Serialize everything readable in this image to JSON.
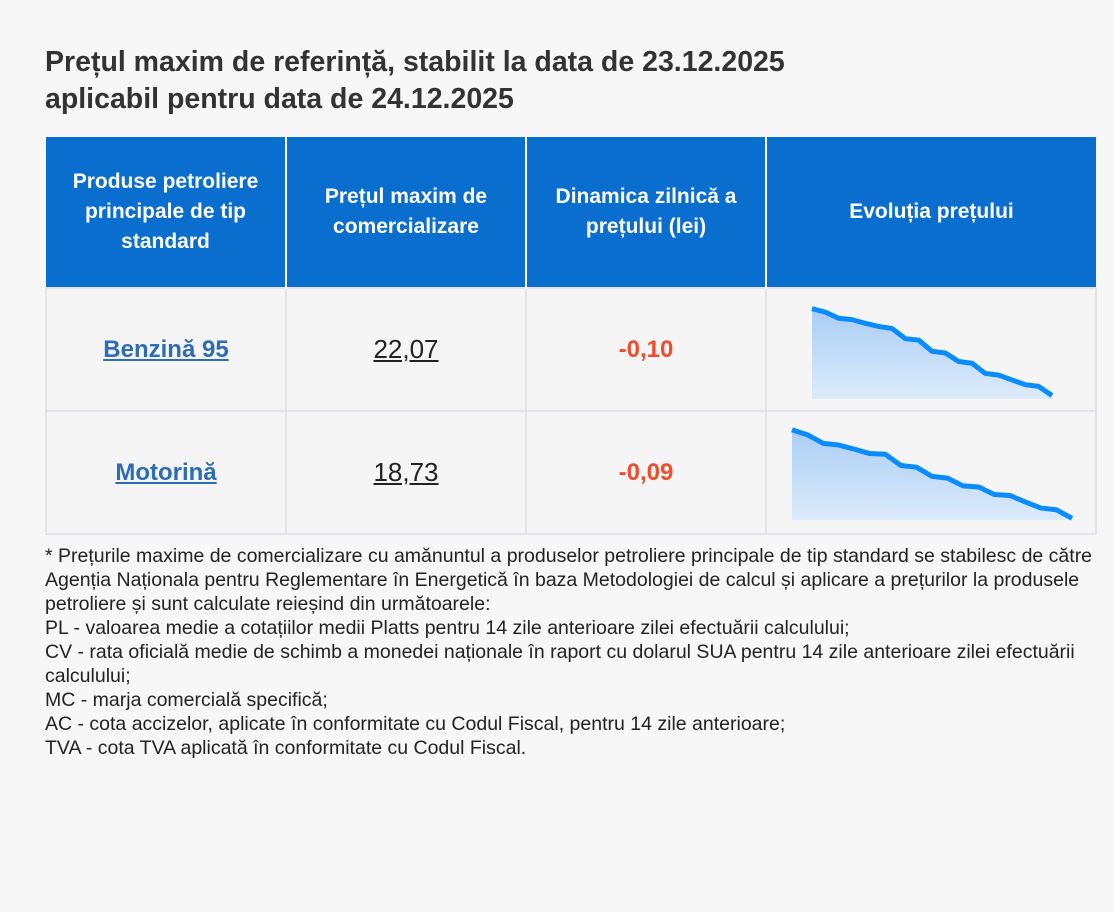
{
  "title_line1": "Prețul maxim de referință, stabilit la data de 23.12.2025",
  "title_line2": "aplicabil pentru data de 24.12.2025",
  "table": {
    "headers": [
      "Produse petroliere principale de tip standard",
      "Prețul maxim de comercializare",
      "Dinamica zilnică a prețului (lei)",
      "Evoluția prețului"
    ],
    "rows": [
      {
        "product": "Benzină 95",
        "price": "22,07",
        "change": "-0,10",
        "trend": [
          265,
          255,
          237,
          233,
          222,
          213,
          207,
          177,
          173,
          140,
          135,
          110,
          105,
          75,
          70,
          56,
          42,
          37,
          10
        ]
      },
      {
        "product": "Motorină",
        "price": "18,73",
        "change": "-0,09",
        "trend": [
          265,
          250,
          225,
          220,
          208,
          195,
          193,
          160,
          155,
          128,
          123,
          100,
          97,
          75,
          72,
          53,
          35,
          30,
          5
        ]
      }
    ]
  },
  "colors": {
    "header": "#0a6ecf",
    "link": "#2e6db3",
    "negative": "#f14c2c",
    "sparkline": "#0a8cff"
  },
  "notes": [
    "* Prețurile maxime de comercializare cu amănuntul a produselor petroliere principale de tip standard se stabilesc de către Agenția Naționala pentru Reglementare în Energetică în baza Metodologiei de calcul și aplicare a prețurilor la produsele petroliere și sunt calculate reieșind din următoarele:",
    "PL - valoarea medie a cotațiilor medii Platts pentru 14 zile anterioare zilei efectuării calculului;",
    "CV - rata oficială medie de schimb a monedei naționale în raport cu dolarul SUA pentru 14 zile anterioare zilei efectuării calculului;",
    "MC - marja comercială specifică;",
    "AC - cota accizelor, aplicate în conformitate cu Codul Fiscal, pentru 14 zile anterioare;",
    "TVA - cota TVA aplicată în conformitate cu Codul Fiscal."
  ]
}
